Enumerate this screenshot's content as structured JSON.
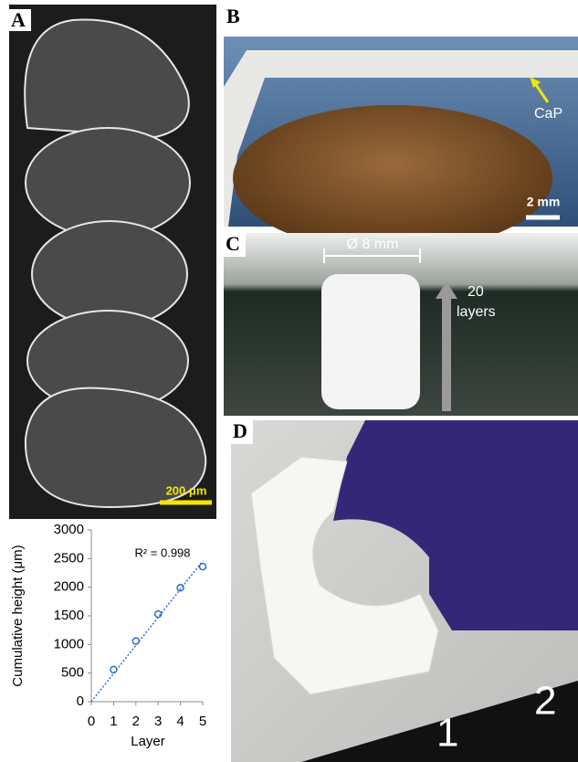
{
  "panels": {
    "a": {
      "label": "A",
      "scale_bar": "200 μm"
    },
    "b": {
      "label": "B",
      "annotation": "CaP",
      "scale_bar": "2 mm"
    },
    "c": {
      "label": "C",
      "diameter": "Ø 8 mm",
      "layer_count": "20",
      "layer_word": "layers"
    },
    "d": {
      "label": "D",
      "ruler_labels": [
        "1",
        "2"
      ]
    }
  },
  "chart_data": {
    "type": "scatter",
    "x_label": "Layer",
    "y_label": "Cumulative height (μm)",
    "annotation": "R² = 0.998",
    "x": [
      1,
      2,
      3,
      4,
      5
    ],
    "values": [
      560,
      1060,
      1530,
      1990,
      2360
    ],
    "color": "#2e6fc0",
    "xlim": [
      0,
      5
    ],
    "ylim": [
      0,
      3000
    ],
    "xticks": [
      0,
      1,
      2,
      3,
      4,
      5
    ],
    "yticks": [
      0,
      500,
      1000,
      1500,
      2000,
      2500,
      3000
    ],
    "trendline": true
  }
}
